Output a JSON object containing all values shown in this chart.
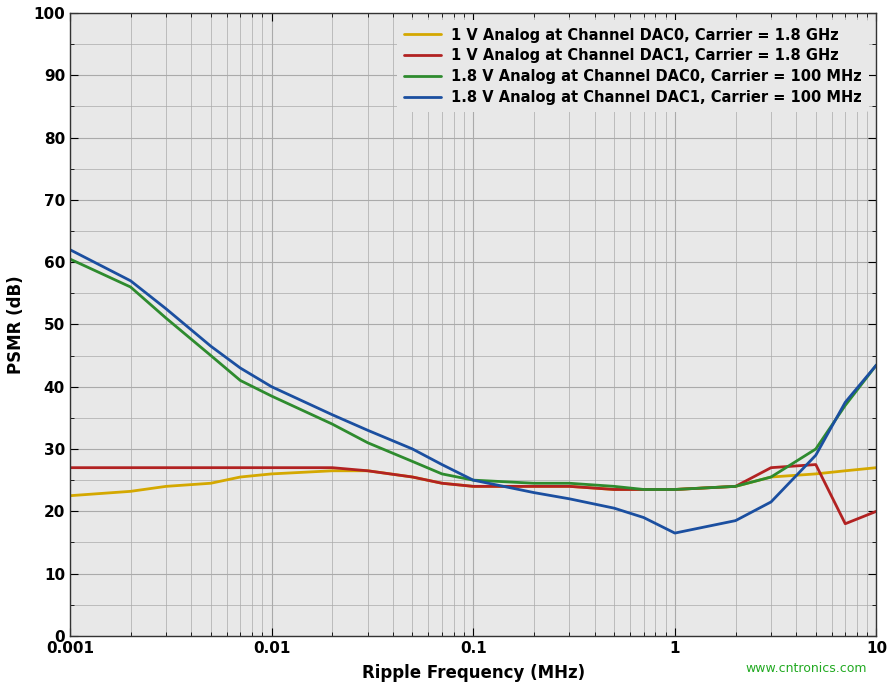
{
  "title": "",
  "xlabel": "Ripple Frequency (MHz)",
  "ylabel": "PSMR (dB)",
  "xlim": [
    0.001,
    10
  ],
  "ylim": [
    0,
    100
  ],
  "yticks": [
    0,
    10,
    20,
    30,
    40,
    50,
    60,
    70,
    80,
    90,
    100
  ],
  "watermark": "www.cntronics.com",
  "series": [
    {
      "label": "1 V Analog at Channel DAC0, Carrier = 1.8 GHz",
      "color": "#D4A800",
      "linewidth": 2.0,
      "x": [
        0.001,
        0.002,
        0.003,
        0.005,
        0.007,
        0.01,
        0.02,
        0.03,
        0.05,
        0.07,
        0.1,
        0.2,
        0.3,
        0.5,
        0.7,
        1.0,
        2.0,
        3.0,
        5.0,
        7.0,
        10.0
      ],
      "y": [
        22.5,
        23.2,
        24.0,
        24.5,
        25.5,
        26.0,
        26.5,
        26.5,
        25.5,
        24.5,
        24.0,
        24.0,
        24.0,
        23.5,
        23.5,
        23.5,
        24.0,
        25.5,
        26.0,
        26.5,
        27.0
      ]
    },
    {
      "label": "1 V Analog at Channel DAC1, Carrier = 1.8 GHz",
      "color": "#B22222",
      "linewidth": 2.0,
      "x": [
        0.001,
        0.002,
        0.003,
        0.005,
        0.007,
        0.01,
        0.02,
        0.03,
        0.05,
        0.07,
        0.1,
        0.2,
        0.3,
        0.5,
        0.7,
        1.0,
        2.0,
        3.0,
        5.0,
        7.0,
        10.0
      ],
      "y": [
        27.0,
        27.0,
        27.0,
        27.0,
        27.0,
        27.0,
        27.0,
        26.5,
        25.5,
        24.5,
        24.0,
        24.0,
        24.0,
        23.5,
        23.5,
        23.5,
        24.0,
        27.0,
        27.5,
        18.0,
        20.0
      ]
    },
    {
      "label": "1.8 V Analog at Channel DAC0, Carrier = 100 MHz",
      "color": "#2E8B2E",
      "linewidth": 2.0,
      "x": [
        0.001,
        0.002,
        0.003,
        0.005,
        0.007,
        0.01,
        0.02,
        0.03,
        0.05,
        0.07,
        0.1,
        0.2,
        0.3,
        0.5,
        0.7,
        1.0,
        2.0,
        3.0,
        5.0,
        7.0,
        10.0
      ],
      "y": [
        60.5,
        56.0,
        51.0,
        45.0,
        41.0,
        38.5,
        34.0,
        31.0,
        28.0,
        26.0,
        25.0,
        24.5,
        24.5,
        24.0,
        23.5,
        23.5,
        24.0,
        25.5,
        30.0,
        37.0,
        43.5
      ]
    },
    {
      "label": "1.8 V Analog at Channel DAC1, Carrier = 100 MHz",
      "color": "#1B4FA0",
      "linewidth": 2.0,
      "x": [
        0.001,
        0.002,
        0.003,
        0.005,
        0.007,
        0.01,
        0.02,
        0.03,
        0.05,
        0.07,
        0.1,
        0.2,
        0.3,
        0.5,
        0.7,
        1.0,
        2.0,
        3.0,
        5.0,
        7.0,
        10.0
      ],
      "y": [
        62.0,
        57.0,
        52.5,
        46.5,
        43.0,
        40.0,
        35.5,
        33.0,
        30.0,
        27.5,
        25.0,
        23.0,
        22.0,
        20.5,
        19.0,
        16.5,
        18.5,
        21.5,
        29.0,
        37.5,
        43.5
      ]
    }
  ],
  "legend_fontsize": 10.5,
  "axis_label_fontsize": 12,
  "tick_fontsize": 11,
  "background_color": "#ffffff",
  "plot_bg_color": "#e8e8e8",
  "grid_color": "#aaaaaa",
  "grid_major_lw": 0.8,
  "grid_minor_lw": 0.5
}
